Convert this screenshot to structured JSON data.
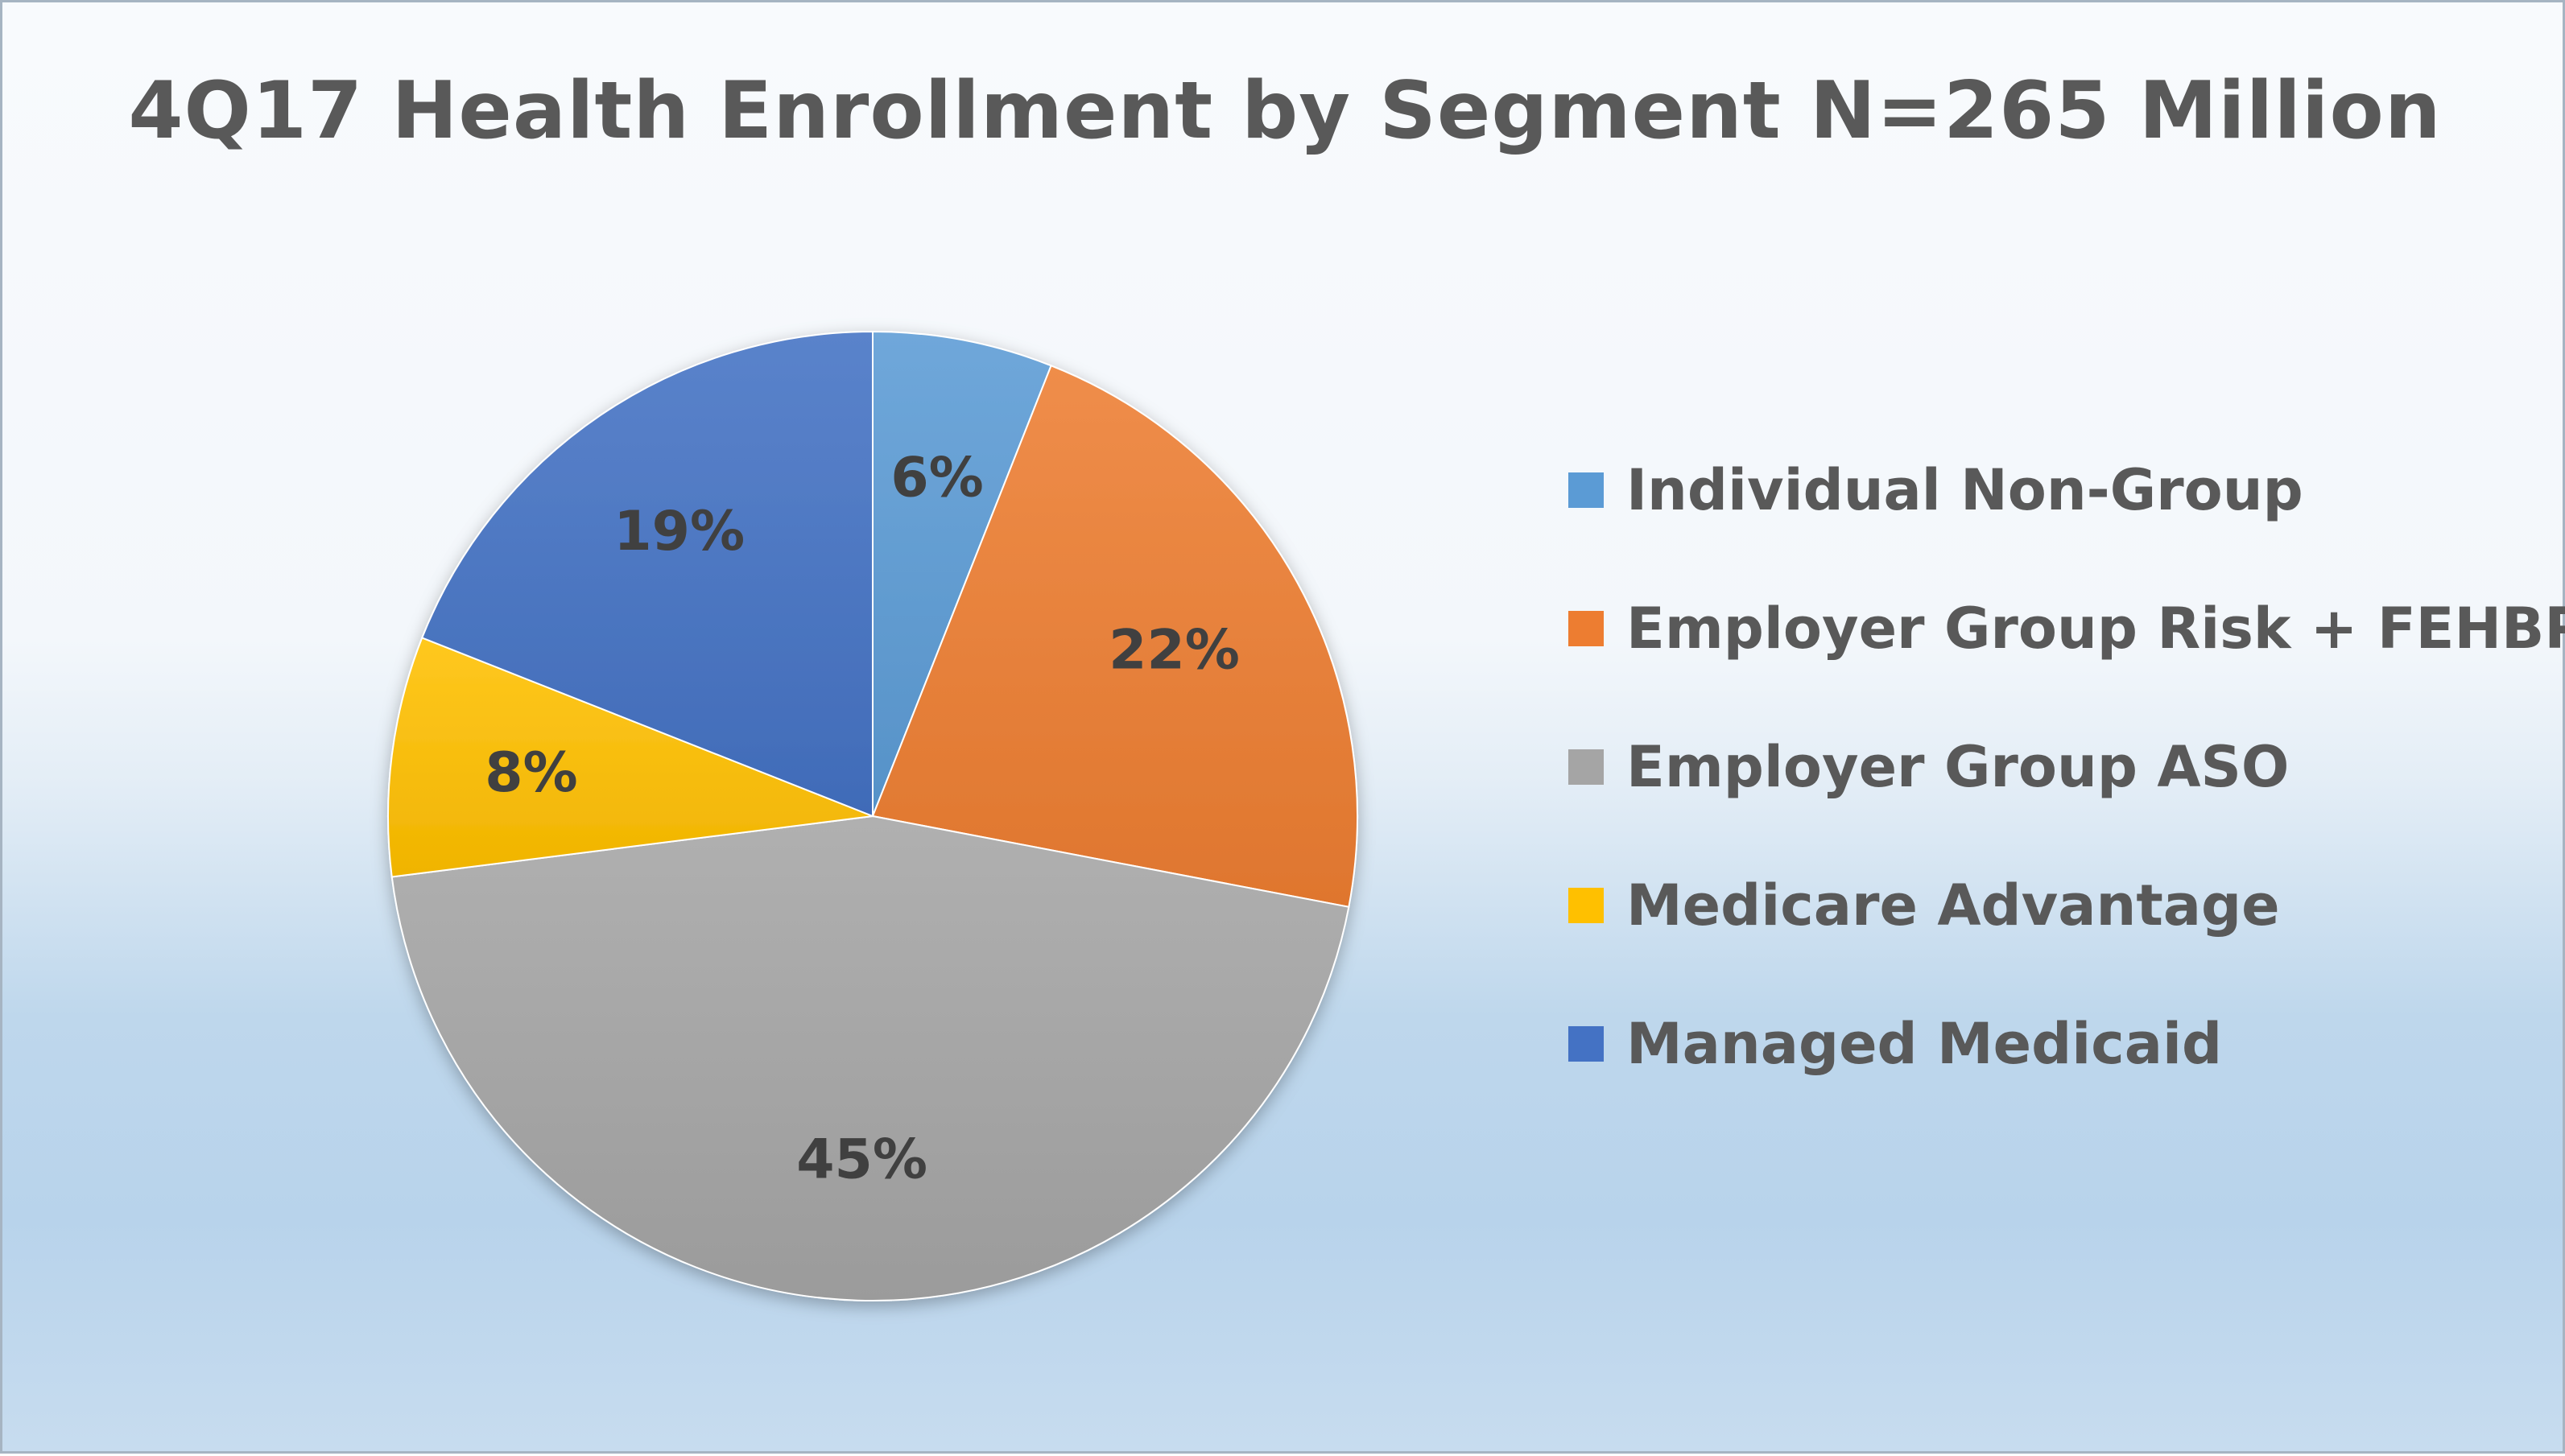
{
  "chart_data": {
    "type": "pie",
    "title": "4Q17 Health Enrollment by Segment N=265 Million",
    "slices": [
      {
        "name": "Individual Non-Group",
        "value": 6,
        "label": "6%",
        "color": "#5b9bd5"
      },
      {
        "name": "Employer Group Risk + FEHBP",
        "value": 22,
        "label": "22%",
        "color": "#ed7d31"
      },
      {
        "name": "Employer Group ASO",
        "value": 45,
        "label": "45%",
        "color": "#a5a5a5"
      },
      {
        "name": "Medicare Advantage",
        "value": 8,
        "label": "8%",
        "color": "#ffc000"
      },
      {
        "name": "Managed Medicaid",
        "value": 19,
        "label": "19%",
        "color": "#4472c4"
      }
    ],
    "legend_position": "right"
  }
}
